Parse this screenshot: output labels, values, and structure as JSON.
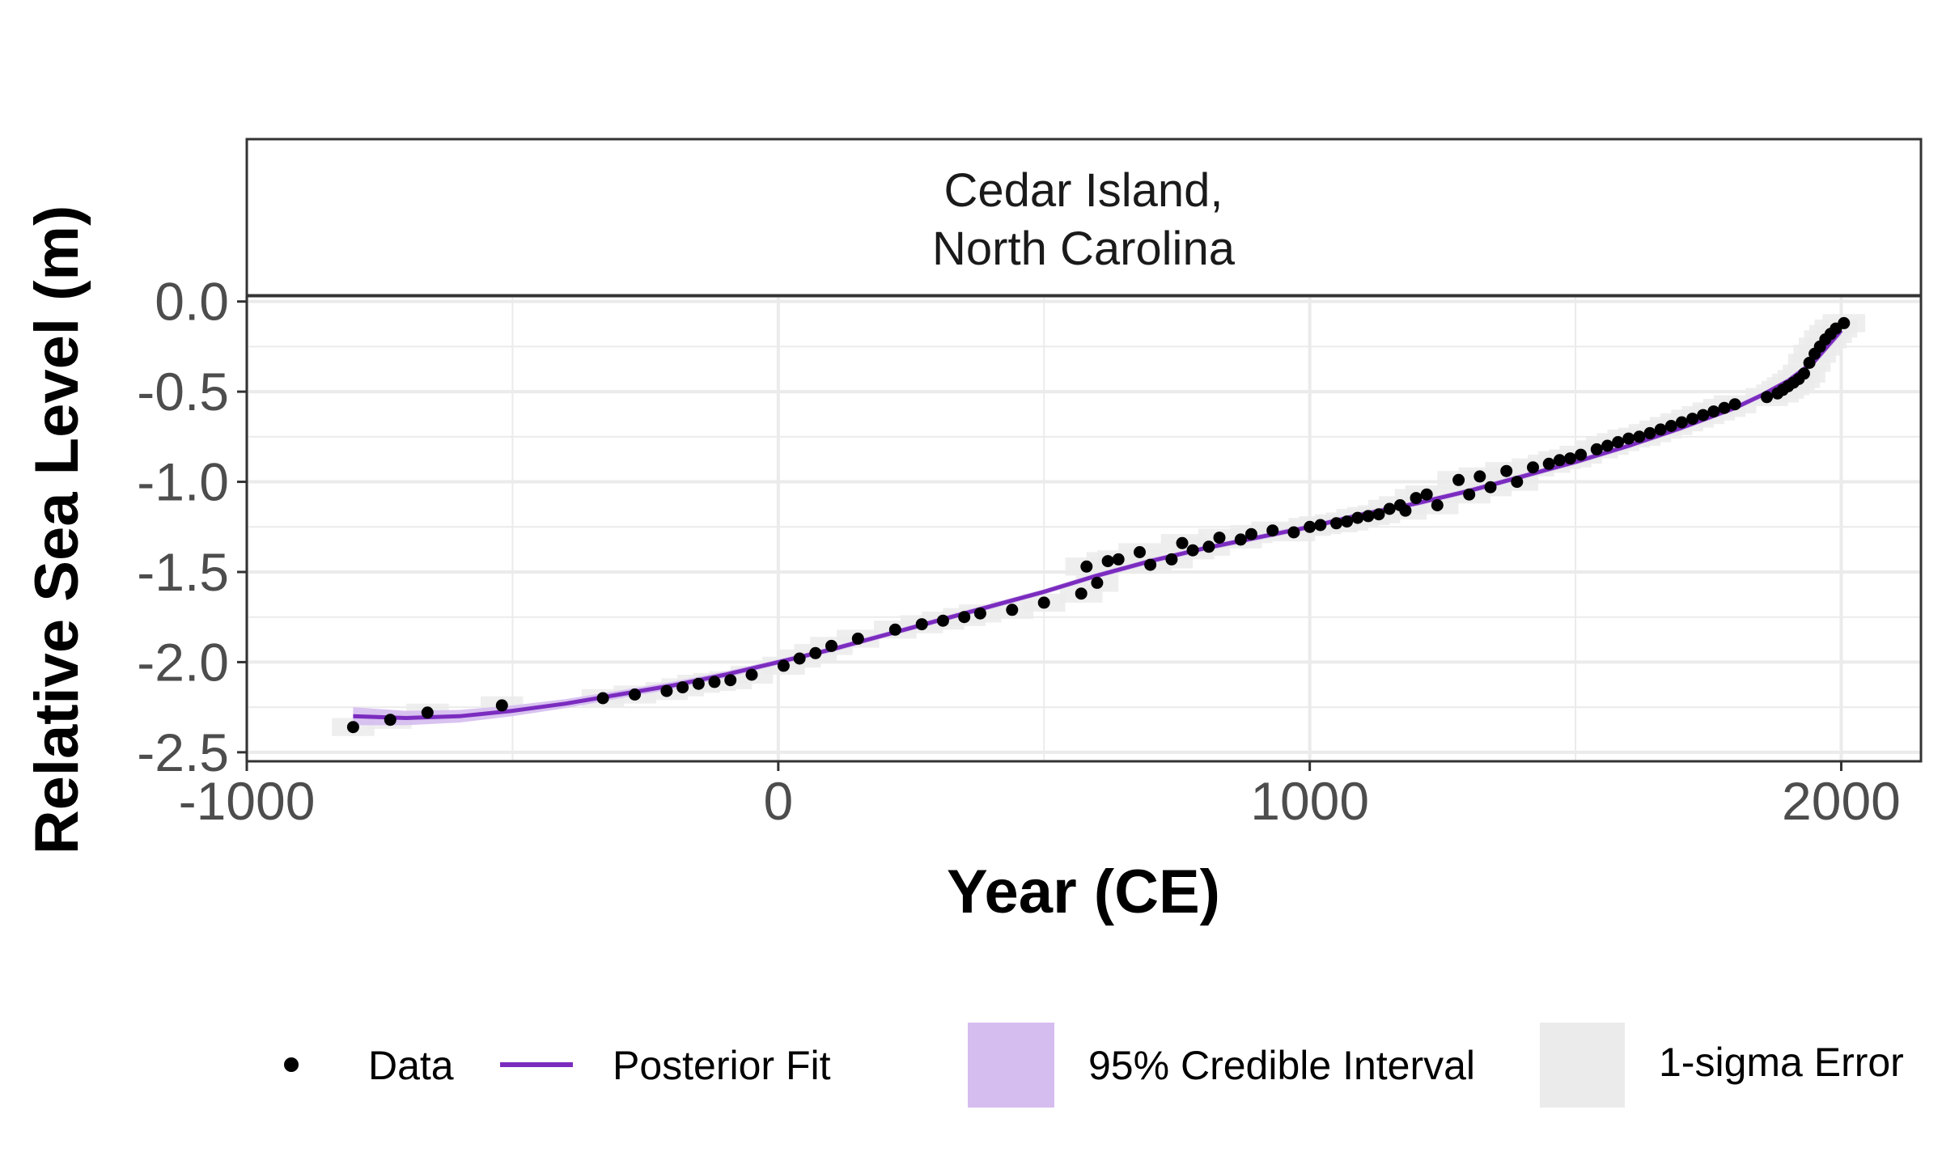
{
  "chart_data": {
    "type": "scatter",
    "panel_title_lines": [
      "Cedar Island,",
      "North Carolina"
    ],
    "xlabel": "Year (CE)",
    "ylabel": "Relative Sea Level (m)",
    "xlim": [
      -1000,
      2150
    ],
    "ylim": [
      -2.55,
      0.03
    ],
    "x_ticks": [
      -1000,
      0,
      1000,
      2000
    ],
    "x_tick_labels": [
      "-1000",
      "0",
      "1000",
      "2000"
    ],
    "y_ticks": [
      0.0,
      -0.5,
      -1.0,
      -1.5,
      -2.0,
      -2.5
    ],
    "y_tick_labels": [
      "0.0",
      "-0.5",
      "-1.0",
      "-1.5",
      "-2.0",
      "-2.5"
    ],
    "grid": true,
    "legend_position": "bottom",
    "colors": {
      "data_point": "#000000",
      "fit_line": "#7b2cbf",
      "credible_interval": "#d5bdf0",
      "sigma_error": "#ebebeb",
      "grid": "#ebebeb"
    },
    "legend": [
      {
        "label": "Data",
        "kind": "point"
      },
      {
        "label": "Posterior Fit",
        "kind": "line"
      },
      {
        "label": "95% Credible Interval",
        "kind": "fill"
      },
      {
        "label": "1-sigma Error",
        "kind": "fill"
      }
    ],
    "series": [
      {
        "name": "Data",
        "points": [
          [
            -800,
            -2.36
          ],
          [
            -730,
            -2.32
          ],
          [
            -660,
            -2.28
          ],
          [
            -520,
            -2.24
          ],
          [
            -330,
            -2.2
          ],
          [
            -270,
            -2.18
          ],
          [
            -210,
            -2.16
          ],
          [
            -180,
            -2.14
          ],
          [
            -150,
            -2.12
          ],
          [
            -120,
            -2.11
          ],
          [
            -90,
            -2.1
          ],
          [
            -50,
            -2.07
          ],
          [
            10,
            -2.02
          ],
          [
            40,
            -1.98
          ],
          [
            70,
            -1.95
          ],
          [
            100,
            -1.91
          ],
          [
            150,
            -1.87
          ],
          [
            220,
            -1.82
          ],
          [
            270,
            -1.79
          ],
          [
            310,
            -1.77
          ],
          [
            350,
            -1.75
          ],
          [
            380,
            -1.73
          ],
          [
            440,
            -1.71
          ],
          [
            500,
            -1.67
          ],
          [
            570,
            -1.62
          ],
          [
            580,
            -1.47
          ],
          [
            600,
            -1.56
          ],
          [
            620,
            -1.44
          ],
          [
            640,
            -1.43
          ],
          [
            680,
            -1.39
          ],
          [
            700,
            -1.46
          ],
          [
            740,
            -1.43
          ],
          [
            760,
            -1.34
          ],
          [
            780,
            -1.38
          ],
          [
            810,
            -1.36
          ],
          [
            830,
            -1.31
          ],
          [
            870,
            -1.32
          ],
          [
            890,
            -1.29
          ],
          [
            930,
            -1.27
          ],
          [
            970,
            -1.28
          ],
          [
            1000,
            -1.25
          ],
          [
            1020,
            -1.24
          ],
          [
            1050,
            -1.23
          ],
          [
            1070,
            -1.22
          ],
          [
            1090,
            -1.2
          ],
          [
            1110,
            -1.19
          ],
          [
            1130,
            -1.18
          ],
          [
            1150,
            -1.15
          ],
          [
            1170,
            -1.13
          ],
          [
            1180,
            -1.16
          ],
          [
            1200,
            -1.09
          ],
          [
            1220,
            -1.07
          ],
          [
            1240,
            -1.13
          ],
          [
            1280,
            -0.99
          ],
          [
            1300,
            -1.07
          ],
          [
            1320,
            -0.97
          ],
          [
            1340,
            -1.03
          ],
          [
            1370,
            -0.94
          ],
          [
            1390,
            -1.0
          ],
          [
            1420,
            -0.92
          ],
          [
            1450,
            -0.9
          ],
          [
            1470,
            -0.88
          ],
          [
            1490,
            -0.87
          ],
          [
            1510,
            -0.85
          ],
          [
            1540,
            -0.82
          ],
          [
            1560,
            -0.8
          ],
          [
            1580,
            -0.78
          ],
          [
            1600,
            -0.76
          ],
          [
            1620,
            -0.75
          ],
          [
            1640,
            -0.73
          ],
          [
            1660,
            -0.71
          ],
          [
            1680,
            -0.69
          ],
          [
            1700,
            -0.67
          ],
          [
            1720,
            -0.65
          ],
          [
            1740,
            -0.63
          ],
          [
            1760,
            -0.61
          ],
          [
            1780,
            -0.59
          ],
          [
            1800,
            -0.57
          ],
          [
            1860,
            -0.53
          ],
          [
            1880,
            -0.51
          ],
          [
            1890,
            -0.49
          ],
          [
            1900,
            -0.47
          ],
          [
            1910,
            -0.45
          ],
          [
            1920,
            -0.43
          ],
          [
            1930,
            -0.4
          ],
          [
            1940,
            -0.34
          ],
          [
            1950,
            -0.29
          ],
          [
            1960,
            -0.25
          ],
          [
            1970,
            -0.21
          ],
          [
            1980,
            -0.18
          ],
          [
            1990,
            -0.15
          ],
          [
            2005,
            -0.12
          ]
        ]
      },
      {
        "name": "Posterior Fit",
        "points": [
          [
            -800,
            -2.3
          ],
          [
            -700,
            -2.31
          ],
          [
            -600,
            -2.3
          ],
          [
            -500,
            -2.27
          ],
          [
            -400,
            -2.23
          ],
          [
            -300,
            -2.18
          ],
          [
            -200,
            -2.13
          ],
          [
            -100,
            -2.07
          ],
          [
            0,
            -2.0
          ],
          [
            100,
            -1.93
          ],
          [
            200,
            -1.85
          ],
          [
            300,
            -1.77
          ],
          [
            400,
            -1.69
          ],
          [
            500,
            -1.61
          ],
          [
            600,
            -1.52
          ],
          [
            700,
            -1.44
          ],
          [
            800,
            -1.37
          ],
          [
            900,
            -1.31
          ],
          [
            1000,
            -1.25
          ],
          [
            1100,
            -1.18
          ],
          [
            1200,
            -1.12
          ],
          [
            1300,
            -1.05
          ],
          [
            1400,
            -0.97
          ],
          [
            1500,
            -0.89
          ],
          [
            1600,
            -0.8
          ],
          [
            1700,
            -0.7
          ],
          [
            1800,
            -0.59
          ],
          [
            1850,
            -0.52
          ],
          [
            1900,
            -0.44
          ],
          [
            1950,
            -0.33
          ],
          [
            2000,
            -0.16
          ]
        ],
        "credible_interval_halfwidth": [
          0.05,
          0.04,
          0.035,
          0.03,
          0.025,
          0.022,
          0.02,
          0.018,
          0.015,
          0.015,
          0.015,
          0.015,
          0.015,
          0.015,
          0.015,
          0.015,
          0.015,
          0.015,
          0.015,
          0.015,
          0.015,
          0.015,
          0.015,
          0.015,
          0.015,
          0.015,
          0.015,
          0.015,
          0.015,
          0.02,
          0.025
        ]
      }
    ]
  }
}
